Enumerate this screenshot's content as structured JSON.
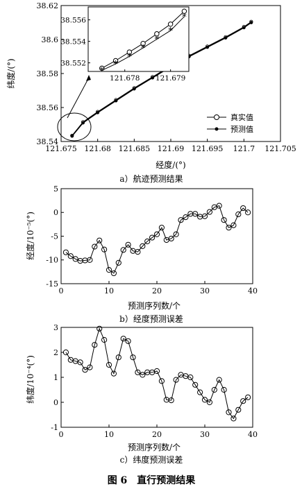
{
  "figure_caption": "图 6　直行预测结果",
  "chart_data": [
    {
      "type": "line",
      "caption": "a）航迹预测结果",
      "xlabel": "经度/(°)",
      "ylabel": "纬度/(°)",
      "xlim": [
        121.675,
        121.705
      ],
      "ylim": [
        38.54,
        38.62
      ],
      "xticks": [
        "121.675",
        "121.68",
        "121.685",
        "121.69",
        "121.695",
        "121.7",
        "121.705"
      ],
      "yticks": [
        "38.54",
        "38.56",
        "38.58",
        "38.6",
        "38.62"
      ],
      "legend": {
        "placement": "lower-right",
        "entries": [
          "真实值",
          "预测值"
        ]
      },
      "series": [
        {
          "name": "真实值",
          "marker": "circle",
          "x": [
            121.6765,
            121.678,
            121.68,
            121.6825,
            121.685,
            121.6875,
            121.69,
            121.6925,
            121.695,
            121.6975,
            121.7,
            121.701
          ],
          "y": [
            38.5435,
            38.5515,
            38.5575,
            38.5645,
            38.5715,
            38.578,
            38.5845,
            38.5905,
            38.596,
            38.6015,
            38.6075,
            38.6105
          ]
        },
        {
          "name": "预测值",
          "marker": "star",
          "x": [
            121.6765,
            121.678,
            121.68,
            121.6825,
            121.685,
            121.6875,
            121.69,
            121.6925,
            121.695,
            121.6975,
            121.7,
            121.701
          ],
          "y": [
            38.5432,
            38.551,
            38.557,
            38.564,
            38.571,
            38.5775,
            38.584,
            38.59,
            38.5955,
            38.601,
            38.607,
            38.61
          ]
        }
      ],
      "inset": {
        "xlim": [
          121.6772,
          121.6794
        ],
        "ylim": [
          38.5512,
          38.5572
        ],
        "xticks": [
          "121.678",
          "121.679"
        ],
        "yticks": [
          "38.552",
          "38.554",
          "38.556"
        ],
        "series": [
          {
            "name": "真实值",
            "x": [
              121.6775,
              121.6778,
              121.6781,
              121.6784,
              121.6787,
              121.679,
              121.6793
            ],
            "y": [
              38.5515,
              38.5522,
              38.553,
              38.5538,
              38.5547,
              38.5556,
              38.5568
            ]
          },
          {
            "name": "预测值",
            "x": [
              121.6775,
              121.6778,
              121.6781,
              121.6784,
              121.6787,
              121.679,
              121.6793
            ],
            "y": [
              38.5513,
              38.5519,
              38.5526,
              38.5534,
              38.5542,
              38.555,
              38.5563
            ]
          }
        ]
      }
    },
    {
      "type": "line",
      "caption": "b）经度预测误差",
      "xlabel": "预测序列数/个",
      "ylabel": "经度/10⁻⁵(°)",
      "xlim": [
        0,
        40
      ],
      "ylim": [
        -15,
        5
      ],
      "xticks": [
        "0",
        "10",
        "20",
        "30",
        "40"
      ],
      "yticks": [
        "5",
        "0",
        "-5",
        "-10",
        "-15"
      ],
      "x": [
        1,
        2,
        3,
        4,
        5,
        6,
        7,
        8,
        9,
        10,
        11,
        12,
        13,
        14,
        15,
        16,
        17,
        18,
        19,
        20,
        21,
        22,
        23,
        24,
        25,
        26,
        27,
        28,
        29,
        30,
        31,
        32,
        33,
        34,
        35,
        36,
        37,
        38,
        39
      ],
      "values": [
        -8.4,
        -9.2,
        -9.8,
        -10.2,
        -10.1,
        -10.0,
        -7.2,
        -5.9,
        -7.8,
        -12.1,
        -12.8,
        -10.6,
        -7.9,
        -6.8,
        -8.1,
        -8.3,
        -7.1,
        -6.1,
        -5.3,
        -4.6,
        -3.2,
        -5.8,
        -5.5,
        -4.6,
        -1.6,
        -1.0,
        -0.3,
        -0.3,
        -0.9,
        -0.8,
        0.1,
        1.1,
        1.4,
        -1.6,
        -3.2,
        -2.7,
        -0.4,
        0.9,
        0.0
      ]
    },
    {
      "type": "line",
      "caption": "c）纬度预测误差",
      "xlabel": "预测序列数/个",
      "ylabel": "纬度/10⁻⁴(°)",
      "xlim": [
        0,
        40
      ],
      "ylim": [
        -1,
        3
      ],
      "xticks": [
        "0",
        "10",
        "20",
        "30",
        "40"
      ],
      "yticks": [
        "3",
        "2",
        "1",
        "0",
        "-1"
      ],
      "x": [
        1,
        2,
        3,
        4,
        5,
        6,
        7,
        8,
        9,
        10,
        11,
        12,
        13,
        14,
        15,
        16,
        17,
        18,
        19,
        20,
        21,
        22,
        23,
        24,
        25,
        26,
        27,
        28,
        29,
        30,
        31,
        32,
        33,
        34,
        35,
        36,
        37,
        38,
        39
      ],
      "values": [
        2.0,
        1.7,
        1.65,
        1.6,
        1.3,
        1.4,
        2.3,
        2.95,
        2.5,
        1.5,
        1.15,
        1.8,
        2.55,
        2.45,
        1.8,
        1.2,
        1.1,
        1.2,
        1.2,
        1.25,
        0.85,
        0.1,
        0.08,
        0.9,
        1.1,
        1.05,
        1.0,
        0.7,
        0.4,
        0.1,
        0.0,
        0.5,
        0.9,
        0.5,
        -0.4,
        -0.65,
        -0.3,
        0.05,
        0.2
      ]
    }
  ]
}
